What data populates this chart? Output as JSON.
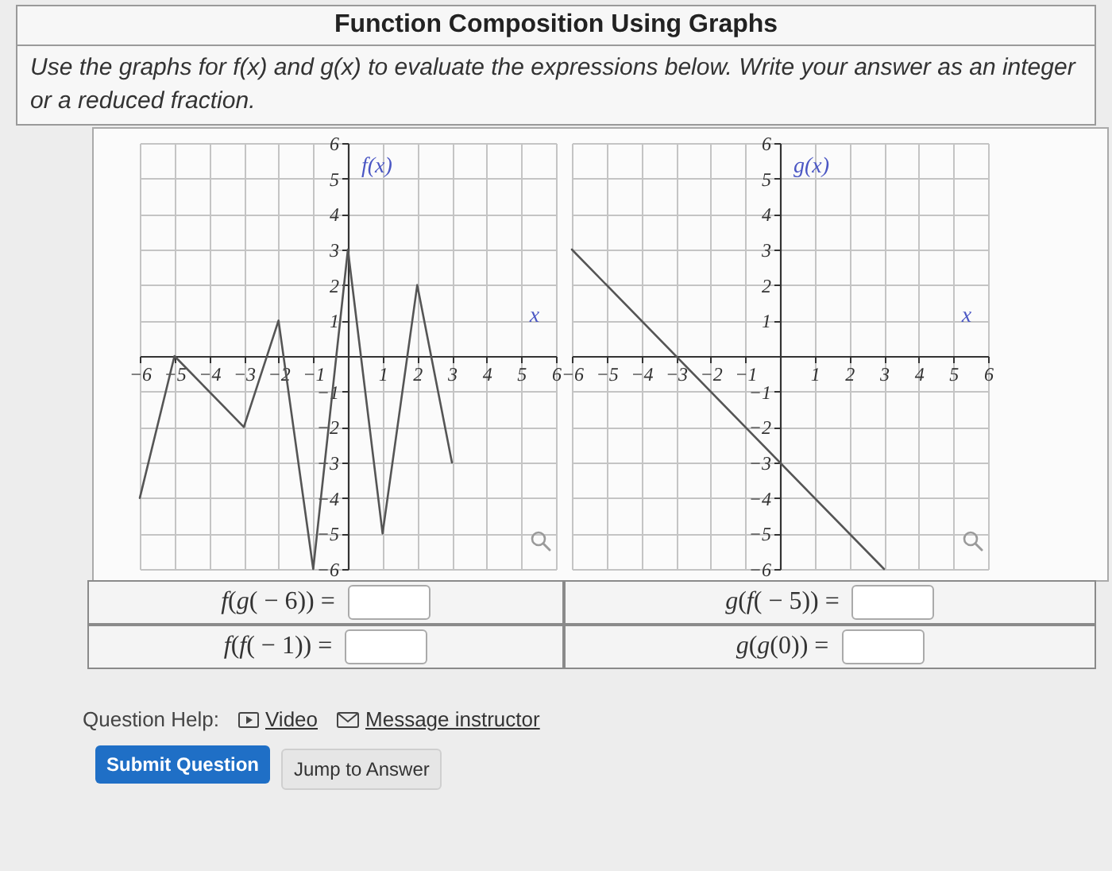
{
  "chart_data": [
    {
      "type": "other",
      "title": "Function Composition Using Graphs",
      "subtitle": "Use the graphs for f(x) and g(x) to evaluate the expressions below. Write your answer as an integer or a reduced fraction."
    },
    {
      "type": "line",
      "xlabel": "x",
      "ylabel": "f(x)",
      "x": [
        -6,
        -5,
        -3,
        -2,
        -1,
        0,
        1,
        2,
        3
      ],
      "series": [
        {
          "color": "#555555",
          "values": [
            -4,
            0,
            -2,
            1,
            -6,
            3,
            -5,
            2,
            -3
          ]
        }
      ],
      "xlim": [
        -6,
        6
      ],
      "ylim": [
        -6,
        6
      ],
      "xticks": [
        -6,
        -5,
        -4,
        -3,
        -2,
        -1,
        1,
        2,
        3,
        4,
        5,
        6
      ],
      "yticks": [
        -6,
        -5,
        -4,
        -3,
        -2,
        -1,
        1,
        2,
        3,
        4,
        5,
        6
      ],
      "grid": true
    },
    {
      "type": "line",
      "xlabel": "x",
      "ylabel": "g(x)",
      "x": [
        -6,
        3
      ],
      "series": [
        {
          "color": "#555555",
          "values": [
            3,
            -6
          ]
        }
      ],
      "xlim": [
        -6,
        6
      ],
      "ylim": [
        -6,
        6
      ],
      "xticks": [
        -6,
        -5,
        -4,
        -3,
        -2,
        -1,
        1,
        2,
        3,
        4,
        5,
        6
      ],
      "yticks": [
        -6,
        -5,
        -4,
        -3,
        -2,
        -1,
        1,
        2,
        3,
        4,
        5,
        6
      ],
      "grid": true
    },
    {
      "type": "other",
      "annotations": [
        "f(g( − 6)) =",
        "g(f( − 5)) =",
        "f(f( − 1)) =",
        "g(g(0)) =",
        "Question Help:",
        "Video",
        "Message instructor",
        "Submit Question",
        "Jump to Answer"
      ]
    }
  ]
}
